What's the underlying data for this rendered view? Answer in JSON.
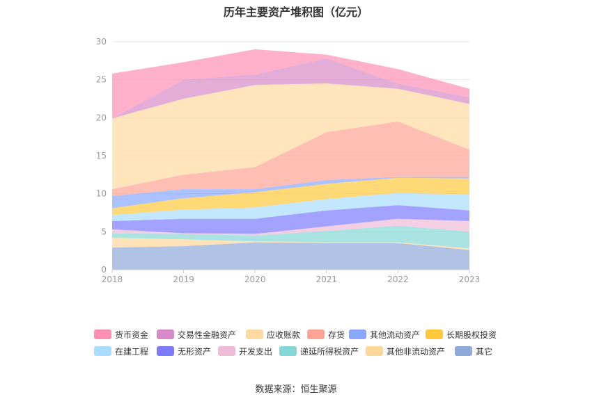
{
  "chart_data": {
    "type": "area",
    "stacked": true,
    "title": "历年主要资产堆积图（亿元）",
    "x": [
      "2018",
      "2019",
      "2020",
      "2021",
      "2022",
      "2023"
    ],
    "ylim": [
      0,
      30
    ],
    "yticks": [
      0,
      5,
      10,
      15,
      20,
      25,
      30
    ],
    "grid": true,
    "legend_position": "bottom",
    "series": [
      {
        "name": "其它",
        "color": "#8eaad8",
        "values": [
          2.9,
          3.1,
          3.6,
          3.5,
          3.5,
          2.6
        ]
      },
      {
        "name": "其他非流动资产",
        "color": "#ffd699",
        "values": [
          1.3,
          0.9,
          0.1,
          0.1,
          0.1,
          0.2
        ]
      },
      {
        "name": "递延所得税资产",
        "color": "#86d8d6",
        "values": [
          0.6,
          0.7,
          0.8,
          1.5,
          2.2,
          2.2
        ]
      },
      {
        "name": "开发支出",
        "color": "#f0bbd8",
        "values": [
          0.5,
          0.1,
          0.2,
          0.6,
          0.9,
          1.4
        ]
      },
      {
        "name": "无形资产",
        "color": "#7c7bff",
        "values": [
          1.1,
          1.9,
          2.0,
          2.1,
          1.8,
          1.4
        ]
      },
      {
        "name": "在建工程",
        "color": "#a8ddff",
        "values": [
          0.8,
          1.2,
          1.5,
          1.5,
          1.6,
          2.1
        ]
      },
      {
        "name": "长期股权投资",
        "color": "#ffc93a",
        "values": [
          0.9,
          1.5,
          2.0,
          2.0,
          2.0,
          2.1
        ]
      },
      {
        "name": "其他流动资产",
        "color": "#89a7ff",
        "values": [
          1.6,
          1.2,
          0.4,
          0.5,
          0.1,
          0.2
        ]
      },
      {
        "name": "存货",
        "color": "#ffa394",
        "values": [
          0.9,
          1.9,
          2.9,
          6.3,
          7.3,
          3.6
        ]
      },
      {
        "name": "应收账款",
        "color": "#ffdaa0",
        "values": [
          9.3,
          10.0,
          10.8,
          6.4,
          4.3,
          6.0
        ]
      },
      {
        "name": "交易性金融资产",
        "color": "#d88ac8",
        "values": [
          0.0,
          2.5,
          1.4,
          3.3,
          0.7,
          0.9
        ]
      },
      {
        "name": "货币资金",
        "color": "#ff8fb4",
        "values": [
          5.9,
          2.3,
          3.3,
          0.5,
          1.9,
          1.1
        ]
      }
    ],
    "legend_order": [
      "货币资金",
      "交易性金融资产",
      "应收账款",
      "存货",
      "其他流动资产",
      "长期股权投资",
      "在建工程",
      "无形资产",
      "开发支出",
      "递延所得税资产",
      "其他非流动资产",
      "其它"
    ]
  },
  "source_text": "数据来源：恒生聚源"
}
